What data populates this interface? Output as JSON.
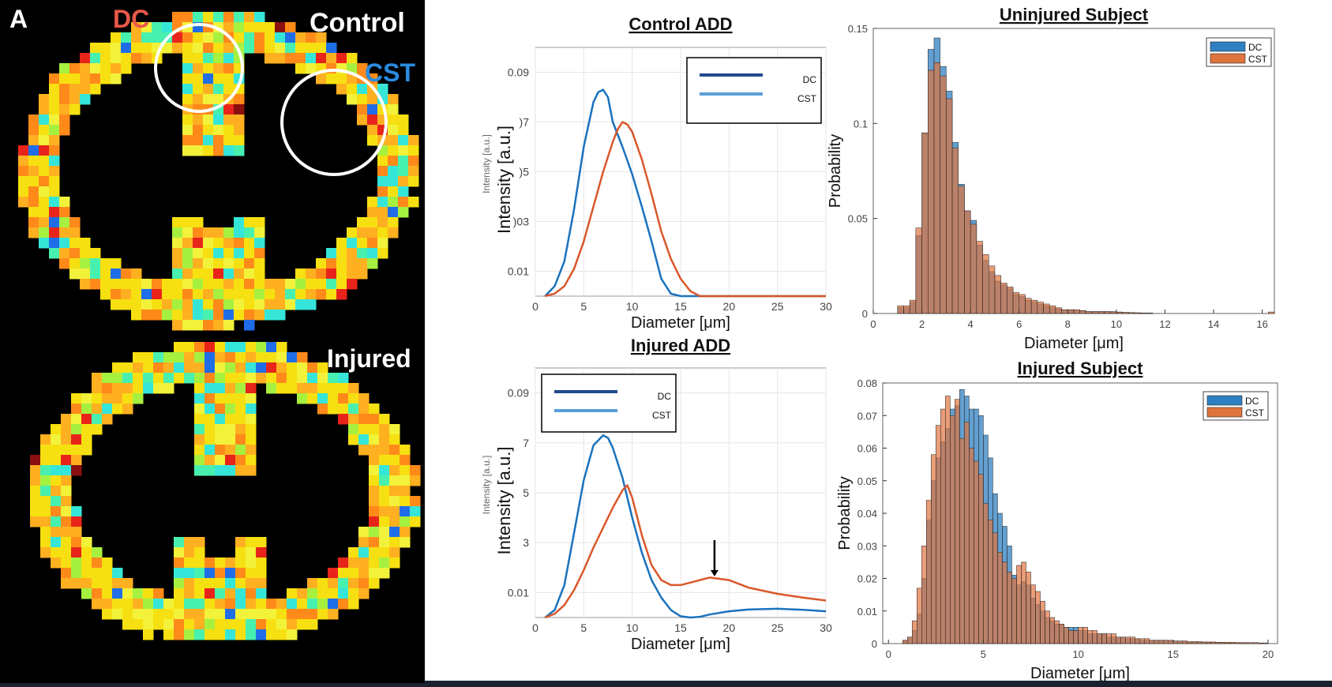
{
  "left_panel": {
    "panel_letter": "A",
    "label_dc": "DC",
    "label_control": "Control",
    "label_cst": "CST",
    "label_injured": "Injured",
    "colors": {
      "dc_label": "#e8584a",
      "cst_label": "#2a8be0",
      "text": "#ffffff"
    }
  },
  "chart_data": [
    {
      "id": "control_add",
      "type": "line",
      "title": "Control ADD",
      "xlabel": "Diameter [μm]",
      "ylabel": "Intensity [a.u.]",
      "ylabel_faint": "Intensity [a.u.]",
      "xlim": [
        0,
        30
      ],
      "ylim": [
        0,
        0.1
      ],
      "xticks": [
        "0",
        "5",
        "10",
        "15",
        "20",
        "25",
        "30"
      ],
      "yticks": [
        {
          "v": 0.01,
          "t": "0.01"
        },
        {
          "v": 0.03,
          "t": ")03"
        },
        {
          "v": 0.05,
          "t": ")5"
        },
        {
          "v": 0.07,
          "t": ")7"
        },
        {
          "v": 0.09,
          "t": "0.09"
        }
      ],
      "legend": [
        "DC",
        "CST"
      ],
      "legend_colors": [
        "#234a8c",
        "#5b9fd8"
      ],
      "series": [
        {
          "color": "#1a72bd",
          "x": [
            1,
            2,
            3,
            4,
            5,
            6,
            6.5,
            7,
            7.5,
            8,
            9,
            10,
            11,
            12,
            13,
            14,
            15,
            20,
            30
          ],
          "y": [
            0,
            0.004,
            0.014,
            0.035,
            0.06,
            0.078,
            0.082,
            0.083,
            0.08,
            0.07,
            0.06,
            0.049,
            0.036,
            0.022,
            0.007,
            0.001,
            0,
            0,
            0
          ]
        },
        {
          "color": "#d9582b",
          "x": [
            1,
            2,
            3,
            4,
            5,
            6,
            7,
            8,
            8.5,
            9,
            9.5,
            10,
            11,
            12,
            13,
            14,
            15,
            16,
            17,
            30
          ],
          "y": [
            0,
            0.001,
            0.004,
            0.011,
            0.022,
            0.036,
            0.05,
            0.062,
            0.067,
            0.07,
            0.069,
            0.066,
            0.055,
            0.041,
            0.026,
            0.015,
            0.007,
            0.002,
            0,
            0
          ]
        }
      ]
    },
    {
      "id": "injured_add",
      "type": "line",
      "title": "Injured ADD",
      "xlabel": "Diameter [μm]",
      "ylabel": "Intensity [a.u.]",
      "ylabel_faint": "Intensity [a.u.]",
      "xlim": [
        0,
        30
      ],
      "ylim": [
        0,
        0.1
      ],
      "xticks": [
        "0",
        "5",
        "10",
        "15",
        "20",
        "25",
        "30"
      ],
      "yticks": [
        {
          "v": 0.01,
          "t": "0.01"
        },
        {
          "v": 0.03,
          "t": "3"
        },
        {
          "v": 0.05,
          "t": "5"
        },
        {
          "v": 0.07,
          "t": "7"
        },
        {
          "v": 0.09,
          "t": "0.09"
        }
      ],
      "legend": [
        "DC",
        "CST"
      ],
      "legend_colors": [
        "#234a8c",
        "#5b9fd8"
      ],
      "annotation_arrow_x": 18.5,
      "series": [
        {
          "color": "#1a72bd",
          "x": [
            1,
            2,
            3,
            4,
            5,
            6,
            7,
            7.5,
            8,
            9,
            10,
            11,
            12,
            13,
            14,
            15,
            16,
            17,
            18,
            20,
            22,
            25,
            28,
            30
          ],
          "y": [
            0,
            0.003,
            0.013,
            0.034,
            0.055,
            0.069,
            0.073,
            0.072,
            0.068,
            0.056,
            0.04,
            0.026,
            0.015,
            0.008,
            0.003,
            0.0005,
            0,
            0.0003,
            0.0012,
            0.0025,
            0.0032,
            0.0035,
            0.003,
            0.0025
          ]
        },
        {
          "color": "#d9582b",
          "x": [
            1,
            2,
            3,
            4,
            5,
            6,
            7,
            8,
            9,
            9.5,
            10,
            11,
            12,
            13,
            14,
            15,
            16,
            17,
            18,
            19,
            20,
            22,
            25,
            28,
            30
          ],
          "y": [
            0,
            0.0015,
            0.005,
            0.011,
            0.019,
            0.028,
            0.036,
            0.044,
            0.051,
            0.053,
            0.048,
            0.033,
            0.021,
            0.015,
            0.013,
            0.013,
            0.014,
            0.015,
            0.016,
            0.0155,
            0.015,
            0.012,
            0.0095,
            0.0078,
            0.0068
          ]
        }
      ]
    },
    {
      "id": "uninjured_hist",
      "type": "bar",
      "title": "Uninjured Subject",
      "xlabel": "Diameter [μm]",
      "ylabel": "Probability",
      "xlim": [
        0,
        16.5
      ],
      "ylim": [
        0,
        0.15
      ],
      "xticks": [
        0,
        2,
        4,
        6,
        8,
        10,
        12,
        14,
        16
      ],
      "yticks": [
        {
          "v": 0,
          "t": "0"
        },
        {
          "v": 0.05,
          "t": "0.05"
        },
        {
          "v": 0.1,
          "t": "0.1"
        },
        {
          "v": 0.15,
          "t": "0.15"
        }
      ],
      "bin_start": 0.75,
      "bin_width": 0.25,
      "legend": [
        "DC",
        "CST"
      ],
      "series": [
        {
          "name": "DC",
          "color": "#2f80c2",
          "values": [
            0,
            0.003,
            0.003,
            0.006,
            0.041,
            0.095,
            0.139,
            0.145,
            0.13,
            0.117,
            0.09,
            0.068,
            0.054,
            0.049,
            0.036,
            0.028,
            0.022,
            0.017,
            0.015,
            0.013,
            0.01,
            0.009,
            0.007,
            0.006,
            0.005,
            0.004,
            0.003,
            0.0025,
            0.002,
            0.002,
            0.0015,
            0.0015,
            0.001,
            0.001,
            0.001,
            0.001,
            0.0008,
            0.0005,
            0.0005,
            0.0004,
            0.0003,
            0.0003,
            0.0002,
            0,
            0,
            0,
            0,
            0,
            0,
            0,
            0,
            0,
            0,
            0,
            0,
            0,
            0,
            0,
            0,
            0,
            0,
            0,
            0
          ]
        },
        {
          "name": "CST",
          "color": "#e0743e",
          "values": [
            0,
            0.004,
            0.004,
            0.007,
            0.045,
            0.095,
            0.128,
            0.132,
            0.125,
            0.113,
            0.087,
            0.067,
            0.054,
            0.047,
            0.038,
            0.031,
            0.025,
            0.02,
            0.016,
            0.014,
            0.011,
            0.01,
            0.008,
            0.007,
            0.006,
            0.005,
            0.004,
            0.003,
            0.002,
            0.002,
            0.002,
            0.0015,
            0.001,
            0.001,
            0.001,
            0.001,
            0.001,
            0.0008,
            0.0006,
            0.0005,
            0.0004,
            0.0003,
            0.0002,
            0,
            0,
            0,
            0,
            0,
            0,
            0,
            0,
            0,
            0,
            0,
            0,
            0,
            0,
            0,
            0,
            0,
            0,
            0,
            0.0008
          ]
        }
      ]
    },
    {
      "id": "injured_hist",
      "type": "bar",
      "title": "Injured Subject",
      "xlabel": "Diameter [μm]",
      "ylabel": "Probability",
      "xlim": [
        -0.3,
        20.5
      ],
      "ylim": [
        0,
        0.08
      ],
      "xticks": [
        0,
        5,
        10,
        15,
        20
      ],
      "yticks": [
        {
          "v": 0,
          "t": "0"
        },
        {
          "v": 0.01,
          "t": "0.01"
        },
        {
          "v": 0.02,
          "t": "0.02"
        },
        {
          "v": 0.03,
          "t": "0.03"
        },
        {
          "v": 0.04,
          "t": "0.04"
        },
        {
          "v": 0.05,
          "t": "0.05"
        },
        {
          "v": 0.06,
          "t": "0.06"
        },
        {
          "v": 0.07,
          "t": "0.07"
        },
        {
          "v": 0.08,
          "t": "0.08"
        }
      ],
      "bin_start": 0.75,
      "bin_width": 0.25,
      "legend": [
        "DC",
        "CST"
      ],
      "series": [
        {
          "name": "DC",
          "color": "#2f80c2",
          "values": [
            0.001,
            0.002,
            0.004,
            0.009,
            0.02,
            0.038,
            0.05,
            0.057,
            0.062,
            0.066,
            0.072,
            0.073,
            0.078,
            0.076,
            0.072,
            0.072,
            0.07,
            0.064,
            0.057,
            0.046,
            0.04,
            0.036,
            0.03,
            0.021,
            0.018,
            0.019,
            0.018,
            0.014,
            0.012,
            0.01,
            0.008,
            0.007,
            0.006,
            0.006,
            0.005,
            0.005,
            0.005,
            0.004,
            0.004,
            0.003,
            0.003,
            0.003,
            0.003,
            0.002,
            0.002,
            0.002,
            0.002,
            0.0015,
            0.0015,
            0.0015,
            0.001,
            0.001,
            0.001,
            0.001,
            0.001,
            0.001,
            0.0008,
            0.0008,
            0.0006,
            0.0006,
            0.0005,
            0.0005,
            0.0005,
            0.0004,
            0.0004,
            0.0003,
            0.0003,
            0.0003,
            0.0002,
            0.0002,
            0.0002,
            0.0002,
            0.0002,
            0.0001,
            0.0001,
            0.0001,
            0.0001
          ]
        },
        {
          "name": "CST",
          "color": "#e0743e",
          "values": [
            0.001,
            0.002,
            0.007,
            0.017,
            0.03,
            0.044,
            0.058,
            0.067,
            0.072,
            0.076,
            0.07,
            0.075,
            0.063,
            0.068,
            0.06,
            0.056,
            0.052,
            0.043,
            0.038,
            0.034,
            0.028,
            0.025,
            0.022,
            0.02,
            0.024,
            0.025,
            0.022,
            0.018,
            0.016,
            0.013,
            0.01,
            0.008,
            0.007,
            0.006,
            0.005,
            0.004,
            0.004,
            0.005,
            0.005,
            0.004,
            0.004,
            0.003,
            0.003,
            0.003,
            0.003,
            0.002,
            0.002,
            0.002,
            0.002,
            0.0015,
            0.0015,
            0.0015,
            0.001,
            0.001,
            0.001,
            0.001,
            0.001,
            0.0008,
            0.0008,
            0.0008,
            0.0006,
            0.0006,
            0.0006,
            0.0005,
            0.0005,
            0.0005,
            0.0004,
            0.0004,
            0.0004,
            0.0004,
            0.0003,
            0.0003,
            0.0003,
            0.0003,
            0.0003,
            0.0002,
            0.0002
          ]
        }
      ]
    }
  ]
}
